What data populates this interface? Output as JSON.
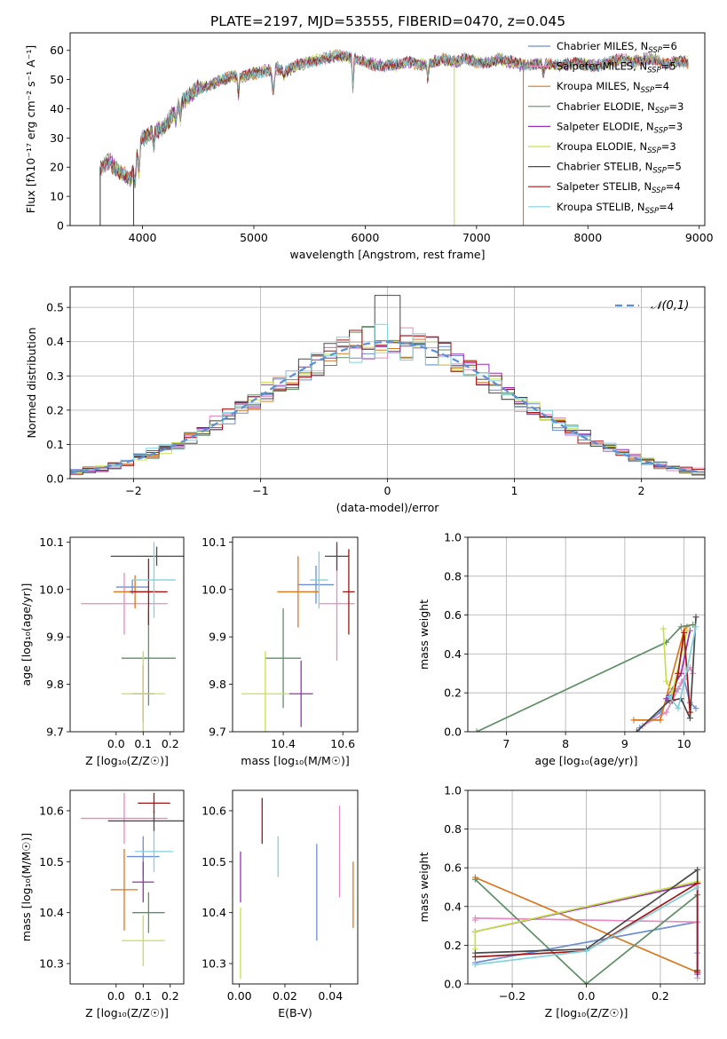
{
  "figure": {
    "title": "PLATE=2197, MJD=53555, FIBERID=0470, z=0.045"
  },
  "chart_data": [
    {
      "id": "spectrum",
      "type": "line",
      "title": "PLATE=2197, MJD=53555, FIBERID=0470, z=0.045",
      "xlabel": "wavelength [Angstrom, rest frame]",
      "ylabel": "Flux [fλ10⁻¹⁷ erg cm⁻² s⁻¹ A⁻¹]",
      "xlim": [
        3350,
        9050
      ],
      "ylim": [
        0,
        66
      ],
      "xticks": [
        4000,
        5000,
        6000,
        7000,
        8000,
        9000
      ],
      "yticks": [
        0,
        10,
        20,
        30,
        40,
        50,
        60
      ],
      "legend_position": "top-right",
      "envelope": {
        "x": [
          3620,
          3700,
          3800,
          3900,
          3950,
          4000,
          4100,
          4200,
          4300,
          4400,
          4500,
          4600,
          4700,
          4800,
          4900,
          5000,
          5100,
          5200,
          5300,
          5400,
          5500,
          5600,
          5700,
          5800,
          5900,
          6000,
          6100,
          6200,
          6300,
          6400,
          6500,
          6600,
          6700,
          6800,
          6900,
          7000,
          7100,
          7200,
          7300,
          7400,
          7500,
          7600,
          7700,
          7800,
          7900,
          8000,
          8100,
          8200,
          8300,
          8400,
          8500,
          8600,
          8700,
          8800,
          8900
        ],
        "y": [
          20,
          22,
          18,
          16,
          25,
          30,
          32,
          34,
          40,
          44,
          47,
          48,
          50,
          51,
          51,
          52,
          53,
          54,
          53,
          55,
          56,
          57,
          58,
          58,
          57,
          56,
          55,
          55,
          55,
          56,
          55,
          56,
          57,
          56,
          57,
          56,
          56,
          57,
          56,
          55,
          55,
          56,
          55,
          55,
          56,
          55,
          55,
          56,
          57,
          56,
          57,
          57,
          55,
          56,
          56
        ]
      },
      "series": [
        {
          "name": "Chabrier MILES, N_SSP=6",
          "color": "#6b8ed6"
        },
        {
          "name": "Salpeter MILES, N_SSP=5",
          "color": "#e68abf"
        },
        {
          "name": "Kroupa MILES, N_SSP=4",
          "color": "#d9771f"
        },
        {
          "name": "Chabrier ELODIE, N_SSP=3",
          "color": "#5f8f66"
        },
        {
          "name": "Salpeter ELODIE, N_SSP=3",
          "color": "#9a2fb5"
        },
        {
          "name": "Kroupa ELODIE, N_SSP=3",
          "color": "#c8e04a"
        },
        {
          "name": "Chabrier STELIB, N_SSP=5",
          "color": "#4a4a4a"
        },
        {
          "name": "Salpeter STELIB, N_SSP=4",
          "color": "#a31515"
        },
        {
          "name": "Kroupa STELIB, N_SSP=4",
          "color": "#7fd1dd"
        }
      ],
      "drop_lines": [
        {
          "x": 3620,
          "color": "#4a4a4a"
        },
        {
          "x": 3920,
          "color": "#4a4a4a"
        },
        {
          "x": 6800,
          "color": "#c8e04a"
        },
        {
          "x": 7420,
          "color": "#d9771f"
        }
      ]
    },
    {
      "id": "residuals",
      "type": "histogram",
      "xlabel": "(data-model)/error",
      "ylabel": "Normed distribution",
      "xlim": [
        -2.5,
        2.5
      ],
      "ylim": [
        0,
        0.56
      ],
      "xticks": [
        -2,
        -1,
        0,
        1,
        2
      ],
      "xtick_labels": [
        "−2",
        "−1",
        "0",
        "1",
        "2"
      ],
      "yticks": [
        0.0,
        0.1,
        0.2,
        0.3,
        0.4,
        0.5
      ],
      "grid": true,
      "legend_position": "top-right",
      "legend": "𝒩(0,1)",
      "bin_width": 0.1,
      "gaussian_color": "#5b8fd9",
      "series_colors": [
        "#6b8ed6",
        "#e68abf",
        "#d9771f",
        "#5f8f66",
        "#9a2fb5",
        "#c8e04a",
        "#4a4a4a",
        "#a31515",
        "#7fd1dd"
      ]
    },
    {
      "id": "age_vs_Z",
      "type": "errorbar",
      "xlabel": "Z [log₁₀(Z/Z☉)]",
      "ylabel": "age  [log₁₀(age/yr)]",
      "xlim": [
        -0.17,
        0.25
      ],
      "ylim": [
        9.7,
        10.11
      ],
      "xticks": [
        0.0,
        0.1,
        0.2
      ],
      "yticks": [
        9.7,
        9.8,
        9.9,
        10.0,
        10.1
      ],
      "points": [
        {
          "x": 0.06,
          "y": 10.005,
          "xerr": 0.06,
          "yerr": 0.015,
          "color": "#6b8ed6"
        },
        {
          "x": 0.03,
          "y": 9.97,
          "xerr": 0.16,
          "yerr": 0.065,
          "color": "#e68abf"
        },
        {
          "x": 0.07,
          "y": 9.995,
          "xerr": 0.08,
          "yerr": 0.035,
          "color": "#d9771f"
        },
        {
          "x": 0.12,
          "y": 9.855,
          "xerr": 0.1,
          "yerr": 0.1,
          "color": "#5f8f66"
        },
        {
          "x": 0.1,
          "y": 9.78,
          "xerr": 0.04,
          "yerr": 0.06,
          "color": "#9a2fb5"
        },
        {
          "x": 0.1,
          "y": 9.78,
          "xerr": 0.08,
          "yerr": 0.09,
          "color": "#c8e04a"
        },
        {
          "x": 0.15,
          "y": 10.07,
          "xerr": 0.17,
          "yerr": 0.02,
          "color": "#4a4a4a"
        },
        {
          "x": 0.12,
          "y": 9.995,
          "xerr": 0.07,
          "yerr": 0.07,
          "color": "#a31515"
        },
        {
          "x": 0.14,
          "y": 10.02,
          "xerr": 0.08,
          "yerr": 0.08,
          "color": "#7fd1dd"
        }
      ]
    },
    {
      "id": "age_vs_mass",
      "type": "errorbar",
      "xlabel": "mass [log₁₀(M/M☉)]",
      "ylabel": "",
      "xlim": [
        10.23,
        10.65
      ],
      "ylim": [
        9.7,
        10.11
      ],
      "xticks": [
        10.4,
        10.6
      ],
      "yticks": [
        9.7,
        9.8,
        9.9,
        10.0,
        10.1
      ],
      "points": [
        {
          "x": 10.51,
          "y": 10.01,
          "xerr": 0.06,
          "yerr": 0.04,
          "color": "#6b8ed6"
        },
        {
          "x": 10.58,
          "y": 9.97,
          "xerr": 0.06,
          "yerr": 0.12,
          "color": "#e68abf"
        },
        {
          "x": 10.45,
          "y": 9.995,
          "xerr": 0.07,
          "yerr": 0.075,
          "color": "#d9771f"
        },
        {
          "x": 10.4,
          "y": 9.855,
          "xerr": 0.06,
          "yerr": 0.105,
          "color": "#5f8f66"
        },
        {
          "x": 10.46,
          "y": 9.78,
          "xerr": 0.04,
          "yerr": 0.07,
          "color": "#9a2fb5"
        },
        {
          "x": 10.34,
          "y": 9.78,
          "xerr": 0.08,
          "yerr": 0.09,
          "color": "#c8e04a"
        },
        {
          "x": 10.58,
          "y": 10.07,
          "xerr": 0.04,
          "yerr": 0.03,
          "color": "#4a4a4a"
        },
        {
          "x": 10.62,
          "y": 9.995,
          "xerr": 0.02,
          "yerr": 0.09,
          "color": "#a31515"
        },
        {
          "x": 10.52,
          "y": 10.02,
          "xerr": 0.03,
          "yerr": 0.06,
          "color": "#7fd1dd"
        }
      ]
    },
    {
      "id": "mass_weight_vs_age",
      "type": "line",
      "xlabel": "age  [log₁₀(age/yr)]",
      "ylabel": "mass weight",
      "xlim": [
        6.35,
        10.35
      ],
      "ylim": [
        0,
        1
      ],
      "xticks": [
        7,
        8,
        9,
        10
      ],
      "yticks": [
        0.0,
        0.2,
        0.4,
        0.6,
        0.8,
        1.0
      ],
      "grid": true,
      "series": [
        {
          "color": "#6b8ed6",
          "x": [
            9.25,
            9.6,
            9.75,
            9.9,
            10.0,
            10.1,
            10.2
          ],
          "y": [
            0.02,
            0.1,
            0.18,
            0.22,
            0.27,
            0.15,
            0.12
          ]
        },
        {
          "color": "#e68abf",
          "x": [
            9.3,
            9.7,
            9.95,
            10.1,
            10.15
          ],
          "y": [
            0.03,
            0.1,
            0.25,
            0.33,
            0.3
          ]
        },
        {
          "color": "#d9771f",
          "x": [
            9.15,
            9.6,
            10.0,
            10.05
          ],
          "y": [
            0.06,
            0.06,
            0.52,
            0.54
          ]
        },
        {
          "color": "#5f8f66",
          "x": [
            6.5,
            9.7,
            9.95,
            10.15
          ],
          "y": [
            0.0,
            0.46,
            0.54,
            0.55
          ]
        },
        {
          "color": "#9a2fb5",
          "x": [
            9.7,
            9.95,
            10.1
          ],
          "y": [
            0.17,
            0.3,
            0.52
          ]
        },
        {
          "color": "#c8e04a",
          "x": [
            9.65,
            9.7,
            9.8,
            10.05
          ],
          "y": [
            0.53,
            0.26,
            0.2,
            0.52
          ]
        },
        {
          "color": "#4a4a4a",
          "x": [
            9.2,
            9.75,
            9.95,
            10.1,
            10.2
          ],
          "y": [
            0.0,
            0.16,
            0.17,
            0.07,
            0.59
          ]
        },
        {
          "color": "#a31515",
          "x": [
            9.8,
            9.9,
            10.0,
            10.1
          ],
          "y": [
            0.16,
            0.3,
            0.51,
            0.1
          ]
        },
        {
          "color": "#7fd1dd",
          "x": [
            9.75,
            9.9,
            10.05,
            10.2
          ],
          "y": [
            0.18,
            0.12,
            0.32,
            0.54
          ]
        }
      ]
    },
    {
      "id": "mass_vs_Z",
      "type": "errorbar",
      "xlabel": "Z [log₁₀(Z/Z☉)]",
      "ylabel": "mass [log₁₀(M/M☉)]",
      "xlim": [
        -0.17,
        0.25
      ],
      "ylim": [
        10.26,
        10.64
      ],
      "xticks": [
        0.0,
        0.1,
        0.2
      ],
      "yticks": [
        10.3,
        10.4,
        10.5,
        10.6
      ],
      "points": [
        {
          "x": 0.1,
          "y": 10.51,
          "xerr": 0.06,
          "yerr": 0.04,
          "color": "#6b8ed6"
        },
        {
          "x": 0.03,
          "y": 10.585,
          "xerr": 0.16,
          "yerr": 0.05,
          "color": "#e68abf"
        },
        {
          "x": 0.03,
          "y": 10.445,
          "xerr": 0.05,
          "yerr": 0.08,
          "color": "#d9771f"
        },
        {
          "x": 0.12,
          "y": 10.4,
          "xerr": 0.06,
          "yerr": 0.04,
          "color": "#5f8f66"
        },
        {
          "x": 0.1,
          "y": 10.46,
          "xerr": 0.04,
          "yerr": 0.04,
          "color": "#9a2fb5"
        },
        {
          "x": 0.1,
          "y": 10.345,
          "xerr": 0.08,
          "yerr": 0.05,
          "color": "#c8e04a"
        },
        {
          "x": 0.14,
          "y": 10.58,
          "xerr": 0.17,
          "yerr": 0.02,
          "color": "#4a4a4a"
        },
        {
          "x": 0.14,
          "y": 10.615,
          "xerr": 0.06,
          "yerr": 0.02,
          "color": "#a31515"
        },
        {
          "x": 0.14,
          "y": 10.52,
          "xerr": 0.07,
          "yerr": 0.04,
          "color": "#7fd1dd"
        }
      ]
    },
    {
      "id": "mass_vs_EBV",
      "type": "errorbar",
      "xlabel": "E(B-V)",
      "ylabel": "",
      "xlim": [
        -0.003,
        0.052
      ],
      "ylim": [
        10.26,
        10.64
      ],
      "xticks": [
        0.0,
        0.02,
        0.04
      ],
      "xtick_labels": [
        "0.00",
        "0.02",
        "0.04"
      ],
      "yticks": [
        10.3,
        10.4,
        10.5,
        10.6
      ],
      "points": [
        {
          "x": 0.0005,
          "y": 10.47,
          "xerr": 0,
          "yerr": 0.05,
          "color": "#9a2fb5"
        },
        {
          "x": 0.0005,
          "y": 10.34,
          "xerr": 0,
          "yerr": 0.07,
          "color": "#c8e04a"
        },
        {
          "x": 0.01,
          "y": 10.58,
          "xerr": 0,
          "yerr": 0.045,
          "color": "#a31515"
        },
        {
          "x": 0.017,
          "y": 10.51,
          "xerr": 0,
          "yerr": 0.04,
          "color": "#7fd1dd"
        },
        {
          "x": 0.034,
          "y": 10.44,
          "xerr": 0,
          "yerr": 0.095,
          "color": "#6b8ed6"
        },
        {
          "x": 0.044,
          "y": 10.52,
          "xerr": 0,
          "yerr": 0.09,
          "color": "#e68abf"
        },
        {
          "x": 0.05,
          "y": 10.435,
          "xerr": 0,
          "yerr": 0.065,
          "color": "#d9771f"
        }
      ]
    },
    {
      "id": "mass_weight_vs_Z",
      "type": "line",
      "xlabel": "Z [log₁₀(Z/Z☉)]",
      "ylabel": "mass weight",
      "xlim": [
        -0.32,
        0.32
      ],
      "ylim": [
        0,
        1
      ],
      "xticks": [
        -0.2,
        0.0,
        0.2
      ],
      "xtick_labels": [
        "−0.2",
        "0.0",
        "0.2"
      ],
      "yticks": [
        0.0,
        0.2,
        0.4,
        0.6,
        0.8,
        1.0
      ],
      "grid": true,
      "series": [
        {
          "color": "#6b8ed6",
          "x": [
            -0.3,
            0.3,
            0.3
          ],
          "y": [
            0.11,
            0.32,
            0.16
          ]
        },
        {
          "color": "#e68abf",
          "x": [
            -0.3,
            -0.3,
            0.3,
            0.3
          ],
          "y": [
            0.33,
            0.34,
            0.32,
            0.03
          ]
        },
        {
          "color": "#d9771f",
          "x": [
            -0.3,
            0.3,
            0.3
          ],
          "y": [
            0.55,
            0.06,
            0.07
          ]
        },
        {
          "color": "#5f8f66",
          "x": [
            -0.3,
            0.0,
            0.3
          ],
          "y": [
            0.54,
            0.0,
            0.46
          ]
        },
        {
          "color": "#9a2fb5",
          "x": [
            -0.3,
            0.3,
            0.3
          ],
          "y": [
            0.27,
            0.52,
            0.05
          ]
        },
        {
          "color": "#c8e04a",
          "x": [
            -0.3,
            -0.3,
            0.3
          ],
          "y": [
            0.18,
            0.27,
            0.53
          ]
        },
        {
          "color": "#4a4a4a",
          "x": [
            -0.3,
            0.0,
            0.3,
            0.3
          ],
          "y": [
            0.16,
            0.18,
            0.59,
            0.07
          ]
        },
        {
          "color": "#a31515",
          "x": [
            -0.3,
            0.0,
            0.3,
            0.3
          ],
          "y": [
            0.14,
            0.17,
            0.52,
            0.06
          ]
        },
        {
          "color": "#7fd1dd",
          "x": [
            -0.3,
            0.0,
            0.3
          ],
          "y": [
            0.1,
            0.17,
            0.5
          ]
        }
      ]
    }
  ]
}
